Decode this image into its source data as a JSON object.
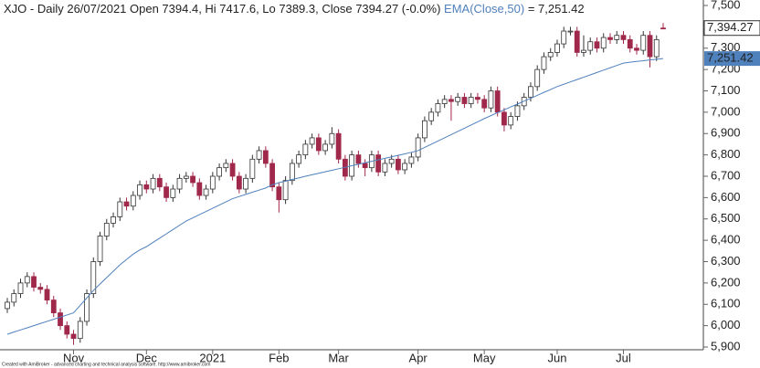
{
  "chart_data": {
    "type": "candlestick",
    "title": "XJO - Daily 26/07/2021 Open 7394.4, Hi 7417.6, Lo 7389.3, Close 7394.27 (-0.0%)",
    "footer": "Created with AmiBroker - advanced charting and technical analysis software. http://www.amibroker.com",
    "categories": [
      null,
      null,
      null,
      null,
      null,
      null,
      null,
      null,
      null,
      null,
      "Nov",
      null,
      null,
      null,
      null,
      null,
      null,
      null,
      null,
      null,
      null,
      "Dec",
      null,
      null,
      null,
      null,
      null,
      null,
      null,
      null,
      null,
      "2021",
      null,
      null,
      null,
      null,
      null,
      null,
      null,
      null,
      null,
      "Feb",
      null,
      null,
      null,
      null,
      null,
      null,
      null,
      null,
      "Mar",
      null,
      null,
      null,
      null,
      null,
      null,
      null,
      null,
      null,
      null,
      null,
      "Apr",
      null,
      null,
      null,
      null,
      null,
      null,
      null,
      null,
      null,
      "May",
      null,
      null,
      null,
      null,
      null,
      null,
      null,
      null,
      null,
      null,
      "Jun",
      null,
      null,
      null,
      null,
      null,
      null,
      null,
      null,
      null,
      "Jul",
      null,
      null,
      null,
      null,
      null,
      null
    ],
    "open": [
      6080,
      6110,
      6150,
      6200,
      6230,
      6180,
      6170,
      6120,
      6060,
      6000,
      5960,
      5940,
      6020,
      6150,
      6300,
      6420,
      6480,
      6510,
      6580,
      6560,
      6610,
      6660,
      6640,
      6690,
      6650,
      6600,
      6640,
      6690,
      6700,
      6670,
      6610,
      6640,
      6700,
      6740,
      6760,
      6700,
      6640,
      6690,
      6780,
      6820,
      6760,
      6650,
      6590,
      6680,
      6760,
      6800,
      6850,
      6880,
      6820,
      6850,
      6900,
      6780,
      6700,
      6800,
      6760,
      6740,
      6800,
      6720,
      6760,
      6780,
      6730,
      6760,
      6790,
      6880,
      6960,
      7000,
      7040,
      7060,
      7050,
      7070,
      7040,
      7070,
      7060,
      7020,
      7100,
      7000,
      6940,
      6980,
      7030,
      7070,
      7120,
      7200,
      7260,
      7280,
      7320,
      7380,
      7380,
      7280,
      7290,
      7330,
      7300,
      7350,
      7340,
      7360,
      7340,
      7300,
      7290,
      7360,
      7260,
      7394.4
    ],
    "high": [
      6130,
      6170,
      6220,
      6250,
      6250,
      6200,
      6190,
      6140,
      6080,
      6020,
      5980,
      6040,
      6170,
      6320,
      6440,
      6500,
      6530,
      6600,
      6600,
      6630,
      6680,
      6680,
      6710,
      6710,
      6670,
      6660,
      6710,
      6720,
      6720,
      6690,
      6660,
      6720,
      6760,
      6780,
      6780,
      6720,
      6710,
      6800,
      6840,
      6840,
      6780,
      6670,
      6700,
      6780,
      6820,
      6870,
      6900,
      6900,
      6870,
      6930,
      6920,
      6800,
      6820,
      6820,
      6780,
      6820,
      6820,
      6780,
      6800,
      6800,
      6780,
      6810,
      6900,
      6980,
      7020,
      7060,
      7080,
      7080,
      7090,
      7090,
      7090,
      7090,
      7080,
      7120,
      7120,
      7020,
      7000,
      7050,
      7090,
      7140,
      7220,
      7280,
      7300,
      7340,
      7400,
      7400,
      7400,
      7360,
      7350,
      7350,
      7370,
      7370,
      7380,
      7380,
      7360,
      7320,
      7380,
      7380,
      7360,
      7417.6
    ],
    "low": [
      6060,
      6090,
      6130,
      6180,
      6160,
      6150,
      6100,
      6040,
      5980,
      5940,
      5910,
      5920,
      6000,
      6130,
      6280,
      6400,
      6460,
      6490,
      6540,
      6540,
      6590,
      6620,
      6620,
      6630,
      6580,
      6580,
      6620,
      6670,
      6650,
      6590,
      6590,
      6620,
      6680,
      6720,
      6680,
      6620,
      6620,
      6670,
      6760,
      6740,
      6630,
      6530,
      6570,
      6660,
      6740,
      6780,
      6830,
      6800,
      6800,
      6830,
      6760,
      6680,
      6680,
      6740,
      6700,
      6720,
      6700,
      6700,
      6740,
      6710,
      6710,
      6740,
      6770,
      6860,
      6940,
      6980,
      7020,
      6960,
      7030,
      7020,
      7020,
      7040,
      7000,
      7000,
      6980,
      6910,
      6920,
      6960,
      7010,
      7050,
      7100,
      7180,
      7240,
      7260,
      7300,
      7360,
      7260,
      7260,
      7270,
      7280,
      7280,
      7320,
      7320,
      7320,
      7280,
      7270,
      7270,
      7210,
      7240,
      7389.3
    ],
    "close": [
      6110,
      6150,
      6200,
      6230,
      6180,
      6170,
      6120,
      6060,
      6000,
      5960,
      5940,
      6020,
      6150,
      6300,
      6420,
      6480,
      6510,
      6580,
      6560,
      6610,
      6660,
      6640,
      6690,
      6650,
      6600,
      6640,
      6690,
      6700,
      6670,
      6610,
      6640,
      6700,
      6740,
      6760,
      6700,
      6640,
      6690,
      6780,
      6820,
      6760,
      6650,
      6590,
      6680,
      6760,
      6800,
      6850,
      6880,
      6820,
      6850,
      6900,
      6780,
      6700,
      6800,
      6760,
      6740,
      6800,
      6720,
      6760,
      6780,
      6730,
      6760,
      6790,
      6880,
      6960,
      7000,
      7040,
      7060,
      7050,
      7070,
      7040,
      7070,
      7060,
      7020,
      7100,
      7000,
      6940,
      6980,
      7030,
      7070,
      7120,
      7200,
      7260,
      7280,
      7320,
      7380,
      7380,
      7280,
      7290,
      7330,
      7300,
      7350,
      7340,
      7360,
      7340,
      7300,
      7290,
      7360,
      7260,
      7340,
      7394.27
    ],
    "close_last_label": "7,394.27",
    "up_color": "#ffffff",
    "down_color": "#a0284a",
    "outline_color": "#333333",
    "series": [
      {
        "name": "EMA(Close,50)",
        "legend_value": "= 7,251.42",
        "last_label": "7,251.42",
        "color": "#4f81bd",
        "values": [
          5960,
          5970,
          5980,
          5990,
          6000,
          6010,
          6020,
          6030,
          6040,
          6050,
          6060,
          6095,
          6130,
          6165,
          6195,
          6225,
          6255,
          6285,
          6310,
          6335,
          6355,
          6370,
          6390,
          6410,
          6430,
          6450,
          6470,
          6490,
          6505,
          6520,
          6535,
          6550,
          6565,
          6580,
          6595,
          6605,
          6615,
          6625,
          6635,
          6645,
          6660,
          6670,
          6677,
          6685,
          6692,
          6700,
          6707,
          6714,
          6721,
          6728,
          6735,
          6742,
          6749,
          6756,
          6763,
          6770,
          6777,
          6784,
          6791,
          6798,
          6805,
          6812,
          6820,
          6835,
          6850,
          6865,
          6880,
          6895,
          6910,
          6925,
          6940,
          6955,
          6970,
          6984,
          6998,
          7011,
          7025,
          7038,
          7052,
          7065,
          7079,
          7093,
          7106,
          7120,
          7131,
          7142,
          7153,
          7164,
          7175,
          7186,
          7197,
          7208,
          7219,
          7230,
          7234,
          7238,
          7241,
          7245,
          7248,
          7251.42
        ]
      }
    ],
    "ylim": [
      5900,
      7500
    ],
    "yticks": [
      {
        "value": 5900,
        "label": "5,900"
      },
      {
        "value": 6000,
        "label": "6,000"
      },
      {
        "value": 6100,
        "label": "6,100"
      },
      {
        "value": 6200,
        "label": "6,200"
      },
      {
        "value": 6300,
        "label": "6,300"
      },
      {
        "value": 6400,
        "label": "6,400"
      },
      {
        "value": 6500,
        "label": "6,500"
      },
      {
        "value": 6600,
        "label": "6,600"
      },
      {
        "value": 6700,
        "label": "6,700"
      },
      {
        "value": 6800,
        "label": "6,800"
      },
      {
        "value": 6900,
        "label": "6,900"
      },
      {
        "value": 7000,
        "label": "7,000"
      },
      {
        "value": 7100,
        "label": "7,100"
      },
      {
        "value": 7200,
        "label": "7,200"
      },
      {
        "value": 7300,
        "label": "7,300"
      },
      {
        "value": 7400,
        "label": "7,400"
      },
      {
        "value": 7500,
        "label": "7,500"
      }
    ]
  }
}
